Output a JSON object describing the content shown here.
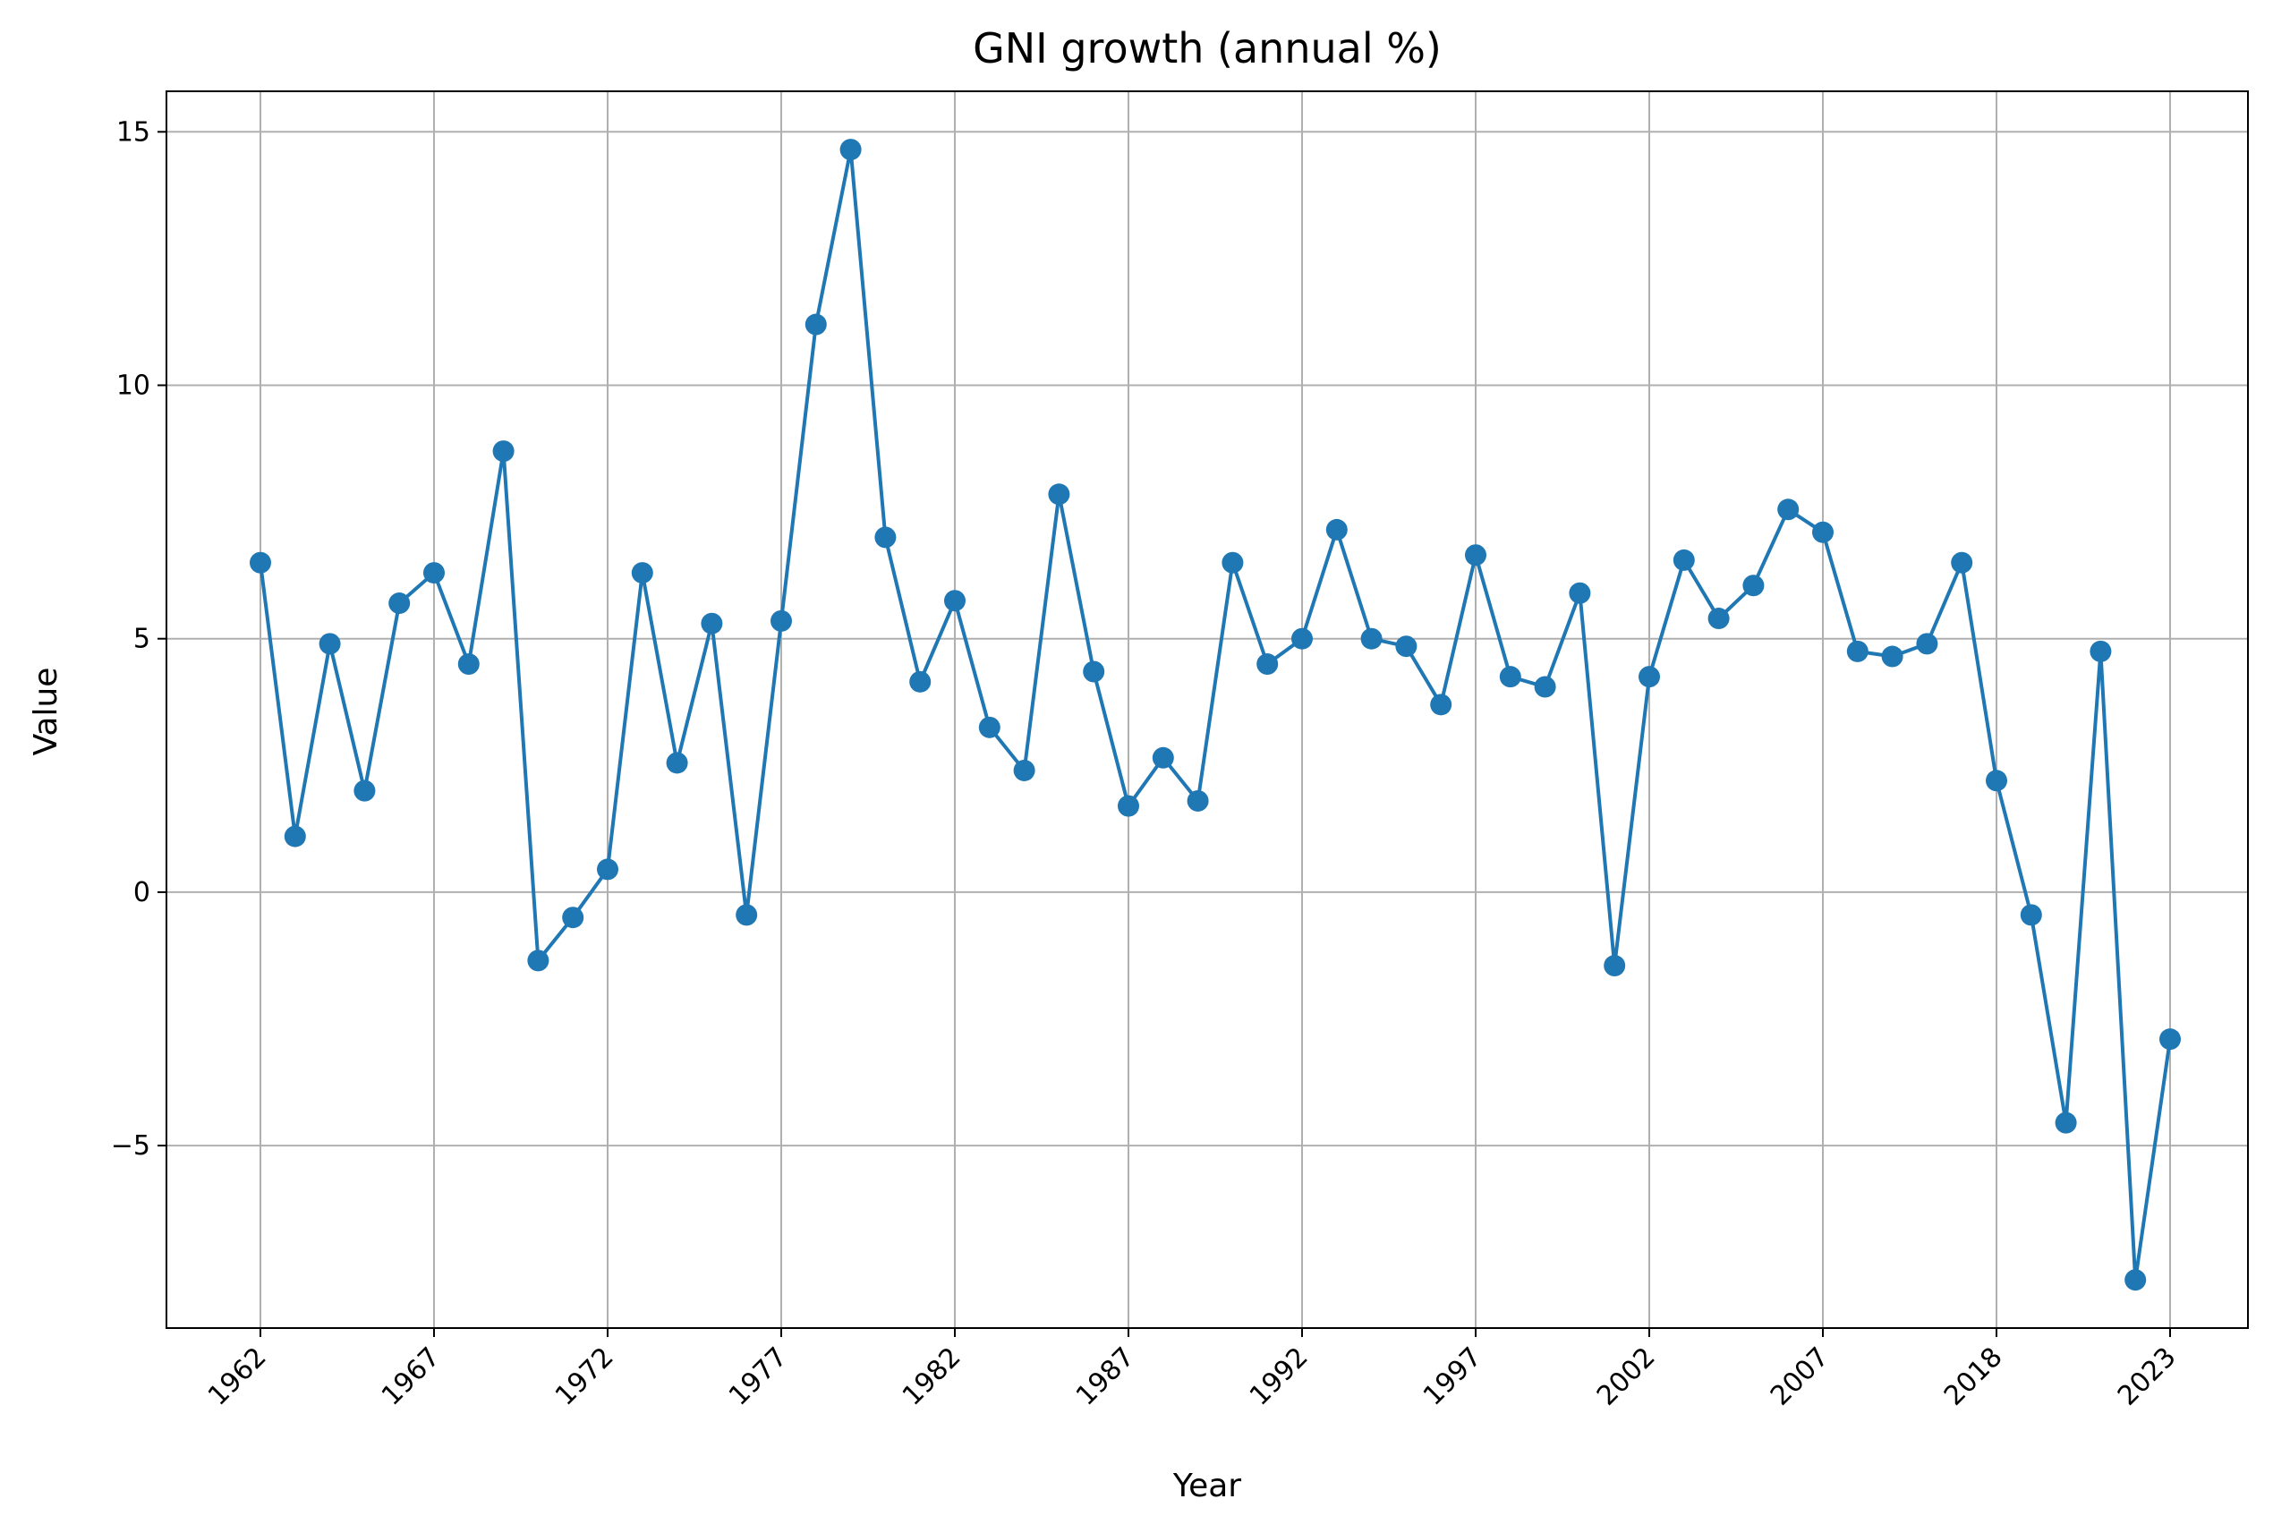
{
  "colors": {
    "series": "#1f77b4",
    "grid": "#b0b0b0",
    "axis": "#000000",
    "background": "#ffffff"
  },
  "chart_data": {
    "type": "line",
    "title": "GNI growth (annual %)",
    "xlabel": "Year",
    "ylabel": "Value",
    "grid": true,
    "marker": "circle",
    "ylim": [
      -8.6,
      15.8
    ],
    "yticks": [
      -5,
      0,
      5,
      10,
      15
    ],
    "yticklabels": [
      "−5",
      "0",
      "5",
      "10",
      "15"
    ],
    "xtick_labels": [
      "1962",
      "1967",
      "1972",
      "1977",
      "1982",
      "1987",
      "1992",
      "1997",
      "2002",
      "2007",
      "2018",
      "2023"
    ],
    "xtick_label_rotation": -45,
    "series": [
      {
        "x": [
          "1962",
          "1963",
          "1964",
          "1965",
          "1966",
          "1967",
          "1968",
          "1969",
          "1970",
          "1971",
          "1972",
          "1973",
          "1974",
          "1975",
          "1976",
          "1977",
          "1978",
          "1979",
          "1980",
          "1981",
          "1982",
          "1983",
          "1984",
          "1985",
          "1986",
          "1987",
          "1988",
          "1989",
          "1990",
          "1991",
          "1992",
          "1993",
          "1994",
          "1995",
          "1996",
          "1997",
          "1998",
          "1999",
          "2000",
          "2001",
          "2002",
          "2003",
          "2004",
          "2005",
          "2006",
          "2007",
          "2008",
          "2009",
          "2010",
          "2017",
          "2018",
          "2019",
          "2020",
          "2021",
          "2022",
          "2023"
        ],
        "values": [
          6.5,
          1.1,
          4.9,
          2.0,
          5.7,
          6.3,
          4.5,
          8.7,
          -1.35,
          -0.5,
          0.45,
          6.3,
          2.55,
          5.3,
          -0.45,
          5.35,
          11.2,
          14.65,
          7.0,
          4.15,
          5.75,
          3.25,
          2.4,
          7.85,
          4.35,
          1.7,
          2.65,
          1.8,
          6.5,
          4.5,
          5.0,
          7.15,
          5.0,
          4.85,
          3.7,
          6.65,
          4.25,
          4.05,
          5.9,
          -1.45,
          4.25,
          6.55,
          5.4,
          6.05,
          7.55,
          7.1,
          4.75,
          4.65,
          4.9,
          6.5,
          2.2,
          -0.45,
          -4.55,
          4.75,
          -7.65,
          -2.9
        ]
      }
    ]
  }
}
